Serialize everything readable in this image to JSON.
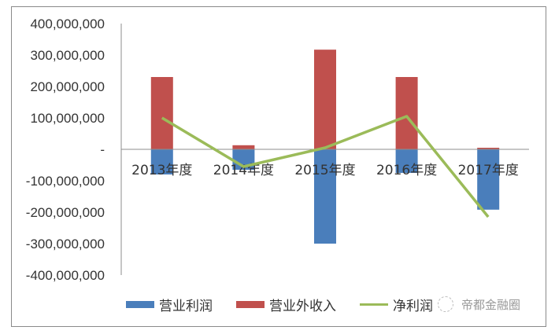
{
  "chart_data": {
    "type": "bar",
    "title": "",
    "xlabel": "",
    "ylabel": "",
    "ylim": [
      -400000000,
      400000000
    ],
    "yticks": [
      "400,000,000",
      "300,000,000",
      "200,000,000",
      "100,000,000",
      "-",
      "-100,000,000",
      "-200,000,000",
      "-300,000,000",
      "-400,000,000"
    ],
    "categories": [
      "2013年度",
      "2014年度",
      "2015年度",
      "2016年度",
      "2017年度"
    ],
    "series": [
      {
        "name": "营业利润",
        "type": "bar",
        "color": "#4a7ebb",
        "values": [
          -80000000,
          -65000000,
          -300000000,
          -75000000,
          -192000000
        ]
      },
      {
        "name": "营业外收入",
        "type": "bar",
        "color": "#c0504d",
        "values": [
          230000000,
          13000000,
          317000000,
          230000000,
          5000000
        ]
      },
      {
        "name": "净利润",
        "type": "line",
        "color": "#9bbb59",
        "values": [
          100000000,
          -55000000,
          5000000,
          105000000,
          -215000000
        ]
      }
    ],
    "grid": false,
    "legend_position": "bottom"
  },
  "legend": {
    "items": [
      {
        "label": "营业利润",
        "color": "#4a7ebb"
      },
      {
        "label": "营业外收入",
        "color": "#c0504d"
      },
      {
        "label": "净利润",
        "color": "#9bbb59"
      }
    ]
  },
  "watermark": {
    "text": "帝都金融圈"
  }
}
